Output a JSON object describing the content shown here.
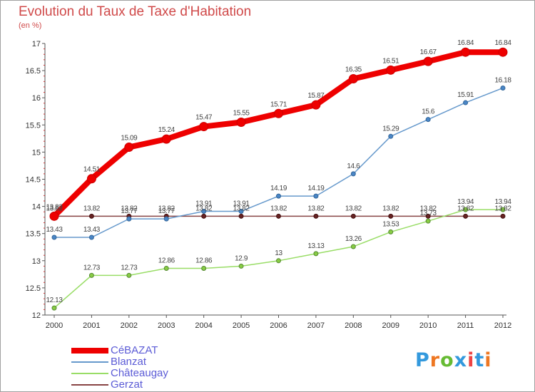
{
  "header": {
    "title": "Evolution du Taux de Taxe d'Habitation",
    "unit": "(en %)"
  },
  "chart_data": {
    "type": "line",
    "x": [
      "2000",
      "2001",
      "2002",
      "2003",
      "2004",
      "2005",
      "2006",
      "2007",
      "2008",
      "2009",
      "2010",
      "2011",
      "2012"
    ],
    "ylim": [
      12,
      17
    ],
    "yticks": [
      "12",
      "12.5",
      "13",
      "13.5",
      "14",
      "14.5",
      "15",
      "15.5",
      "16",
      "16.5",
      "17"
    ],
    "grid": false,
    "legend_position": "bottom-left",
    "series": [
      {
        "name": "CéBAZAT",
        "color": "#ee0000",
        "values": [
          13.82,
          14.51,
          15.09,
          15.24,
          15.47,
          15.55,
          15.71,
          15.87,
          16.35,
          16.51,
          16.67,
          16.84,
          16.84
        ],
        "labels": [
          "13.82",
          "14.51",
          "15.09",
          "15.24",
          "15.47",
          "15.55",
          "15.71",
          "15.87",
          "16.35",
          "16.51",
          "16.67",
          "16.84",
          "16.84"
        ]
      },
      {
        "name": "Blanzat",
        "color": "#6699cc",
        "values": [
          13.43,
          13.43,
          13.77,
          13.77,
          13.91,
          13.91,
          14.19,
          14.19,
          14.6,
          15.29,
          15.6,
          15.91,
          16.18
        ],
        "labels": [
          "13.43",
          "13.43",
          "13.77",
          "13.77",
          "13.91",
          "13.91",
          "14.19",
          "14.19",
          "14.6",
          "15.29",
          "15.6",
          "15.91",
          "16.18"
        ]
      },
      {
        "name": "Châteaugay",
        "color": "#99dd66",
        "values": [
          12.13,
          12.73,
          12.73,
          12.86,
          12.86,
          12.9,
          13,
          13.13,
          13.26,
          13.53,
          13.73,
          13.94,
          13.94
        ],
        "labels": [
          "12.13",
          "12.73",
          "12.73",
          "12.86",
          "12.86",
          "12.9",
          "13",
          "13.13",
          "13.26",
          "13.53",
          "13.73",
          "13.94",
          "13.94"
        ]
      },
      {
        "name": "Gerzat",
        "color": "#884444",
        "values": [
          13.82,
          13.82,
          13.82,
          13.82,
          13.82,
          13.82,
          13.82,
          13.82,
          13.82,
          13.82,
          13.82,
          13.82,
          13.82
        ],
        "labels": [
          "13.82",
          "13.82",
          "13.82",
          "13.82",
          "13.82",
          "13.82",
          "13.82",
          "13.82",
          "13.82",
          "13.82",
          "13.82",
          "13.82",
          "13.82"
        ]
      }
    ]
  },
  "logo": {
    "letters": [
      "P",
      "r",
      "o",
      "x",
      "i",
      "t",
      "i"
    ],
    "colors": [
      "#3399dd",
      "#ee7722",
      "#66bb33",
      "#3399dd",
      "#ee4444",
      "#3399dd",
      "#ee7722"
    ]
  }
}
